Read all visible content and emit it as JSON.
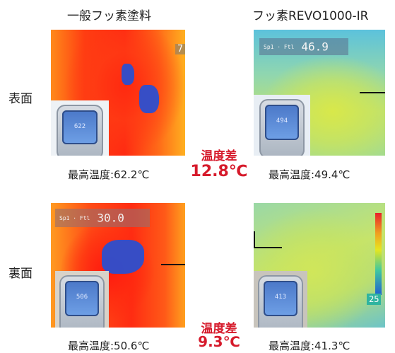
{
  "columns": {
    "left_title": "一般フッ素塗料",
    "right_title": "フッ素REVO1000-IR"
  },
  "rows": {
    "top_label": "表面",
    "bottom_label": "裏面"
  },
  "top": {
    "left_caption": "最高温度:62.2℃",
    "right_caption": "最高温度:49.4℃",
    "diff_label": "温度差",
    "diff_value": "12.8℃",
    "left_edge_number": "7",
    "left_meter_reading": "622",
    "right_hud_small": "Sp1 · Ftl",
    "right_hud_big": "46.9",
    "right_meter_reading": "494"
  },
  "bottom": {
    "left_caption": "最高温度:50.6℃",
    "right_caption": "最高温度:41.3℃",
    "diff_label": "温度差",
    "diff_value": "9.3℃",
    "left_hud_small": "Sp1 · Ftl",
    "left_hud_big": "30.0",
    "left_meter_reading": "506",
    "right_meter_reading": "413",
    "right_scale_value": "25"
  },
  "colors": {
    "accent_red": "#d61a2b"
  }
}
